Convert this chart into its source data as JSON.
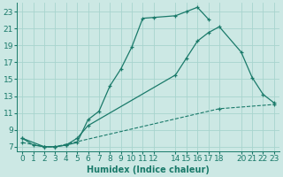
{
  "xlabel": "Humidex (Indice chaleur)",
  "bg_color": "#cce8e4",
  "line_color": "#1a7a6a",
  "grid_color": "#a8d4ce",
  "xlim": [
    -0.5,
    23.5
  ],
  "ylim": [
    6.5,
    24.0
  ],
  "xticks": [
    0,
    1,
    2,
    3,
    4,
    5,
    6,
    7,
    8,
    9,
    10,
    11,
    12,
    14,
    15,
    16,
    17,
    18,
    20,
    21,
    22,
    23
  ],
  "yticks": [
    7,
    9,
    11,
    13,
    15,
    17,
    19,
    21,
    23
  ],
  "line1_x": [
    0,
    1,
    2,
    3,
    4,
    5,
    6,
    7,
    8,
    9,
    10,
    11,
    12,
    14,
    15,
    16,
    17
  ],
  "line1_y": [
    8.0,
    7.2,
    7.0,
    7.0,
    7.2,
    7.5,
    10.2,
    11.2,
    14.2,
    16.2,
    18.8,
    22.2,
    22.3,
    22.5,
    23.0,
    23.5,
    22.1
  ],
  "line2_x": [
    0,
    2,
    3,
    4,
    5,
    6,
    14,
    15,
    16,
    17,
    18,
    20,
    21,
    22,
    23
  ],
  "line2_y": [
    8.0,
    7.0,
    7.0,
    7.2,
    8.0,
    9.5,
    15.5,
    17.5,
    19.5,
    20.5,
    21.2,
    18.2,
    15.2,
    13.2,
    12.2
  ],
  "line3_x": [
    0,
    2,
    3,
    18,
    23
  ],
  "line3_y": [
    7.5,
    7.0,
    7.0,
    11.5,
    12.0
  ],
  "xlabel_fontsize": 7,
  "tick_fontsize": 6.5
}
